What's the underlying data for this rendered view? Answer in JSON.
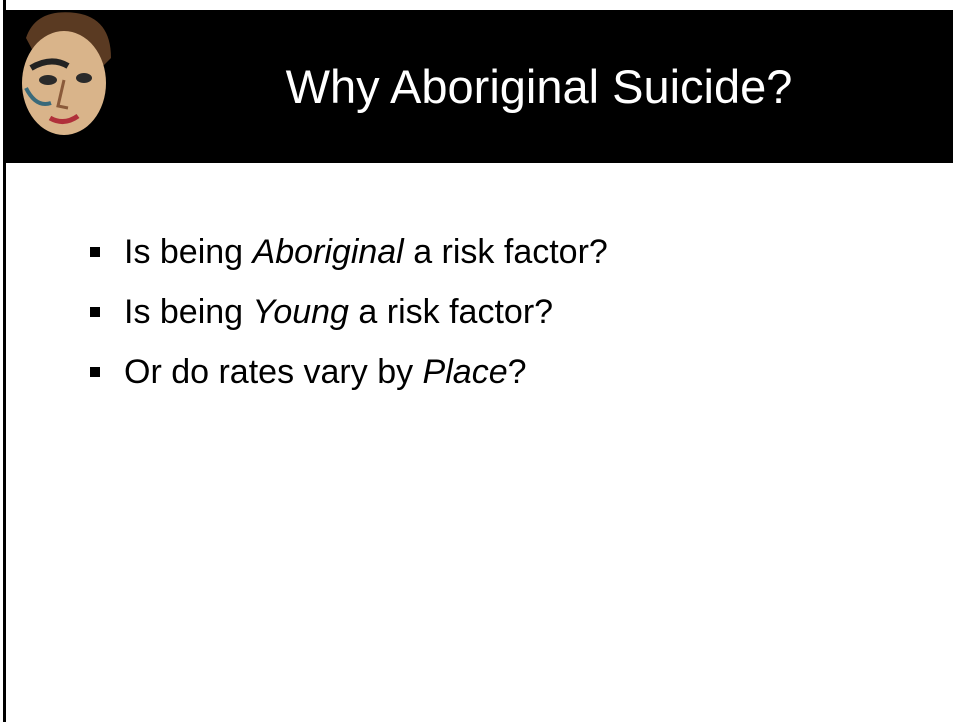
{
  "header": {
    "title": "Why Aboriginal Suicide?"
  },
  "bullets": [
    [
      "Is being ",
      "Aboriginal",
      " a risk factor?"
    ],
    [
      "Is being ",
      "Young",
      " a risk factor?"
    ],
    [
      "Or do rates vary by ",
      "Place",
      "?"
    ]
  ]
}
